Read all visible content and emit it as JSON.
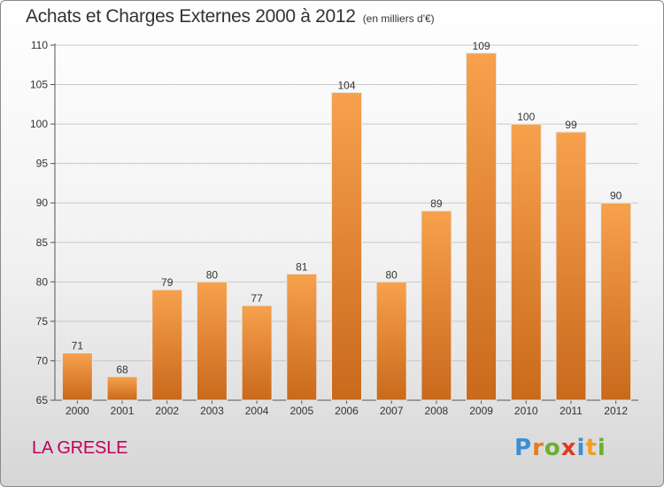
{
  "header": {
    "title": "Achats et Charges Externes 2000 à 2012",
    "unit": "(en milliers d'€)"
  },
  "footer": {
    "commune": "LA GRESLE",
    "logo": "Proxiti"
  },
  "colors": {
    "bar_light": "#f7a14d",
    "bar_dark": "#c9691c",
    "commune": "#c0005a"
  },
  "chart_data": {
    "type": "bar",
    "title": "Achats et Charges Externes 2000 à 2012",
    "subtitle": "(en milliers d'€)",
    "categories": [
      "2000",
      "2001",
      "2002",
      "2003",
      "2004",
      "2005",
      "2006",
      "2007",
      "2008",
      "2009",
      "2010",
      "2011",
      "2012"
    ],
    "values": [
      71,
      68,
      79,
      80,
      77,
      81,
      104,
      80,
      89,
      109,
      100,
      99,
      90
    ],
    "ylim": [
      65,
      110
    ],
    "yticks": [
      65,
      70,
      75,
      80,
      85,
      90,
      95,
      100,
      105,
      110
    ],
    "grid": true,
    "data_labels": true
  }
}
